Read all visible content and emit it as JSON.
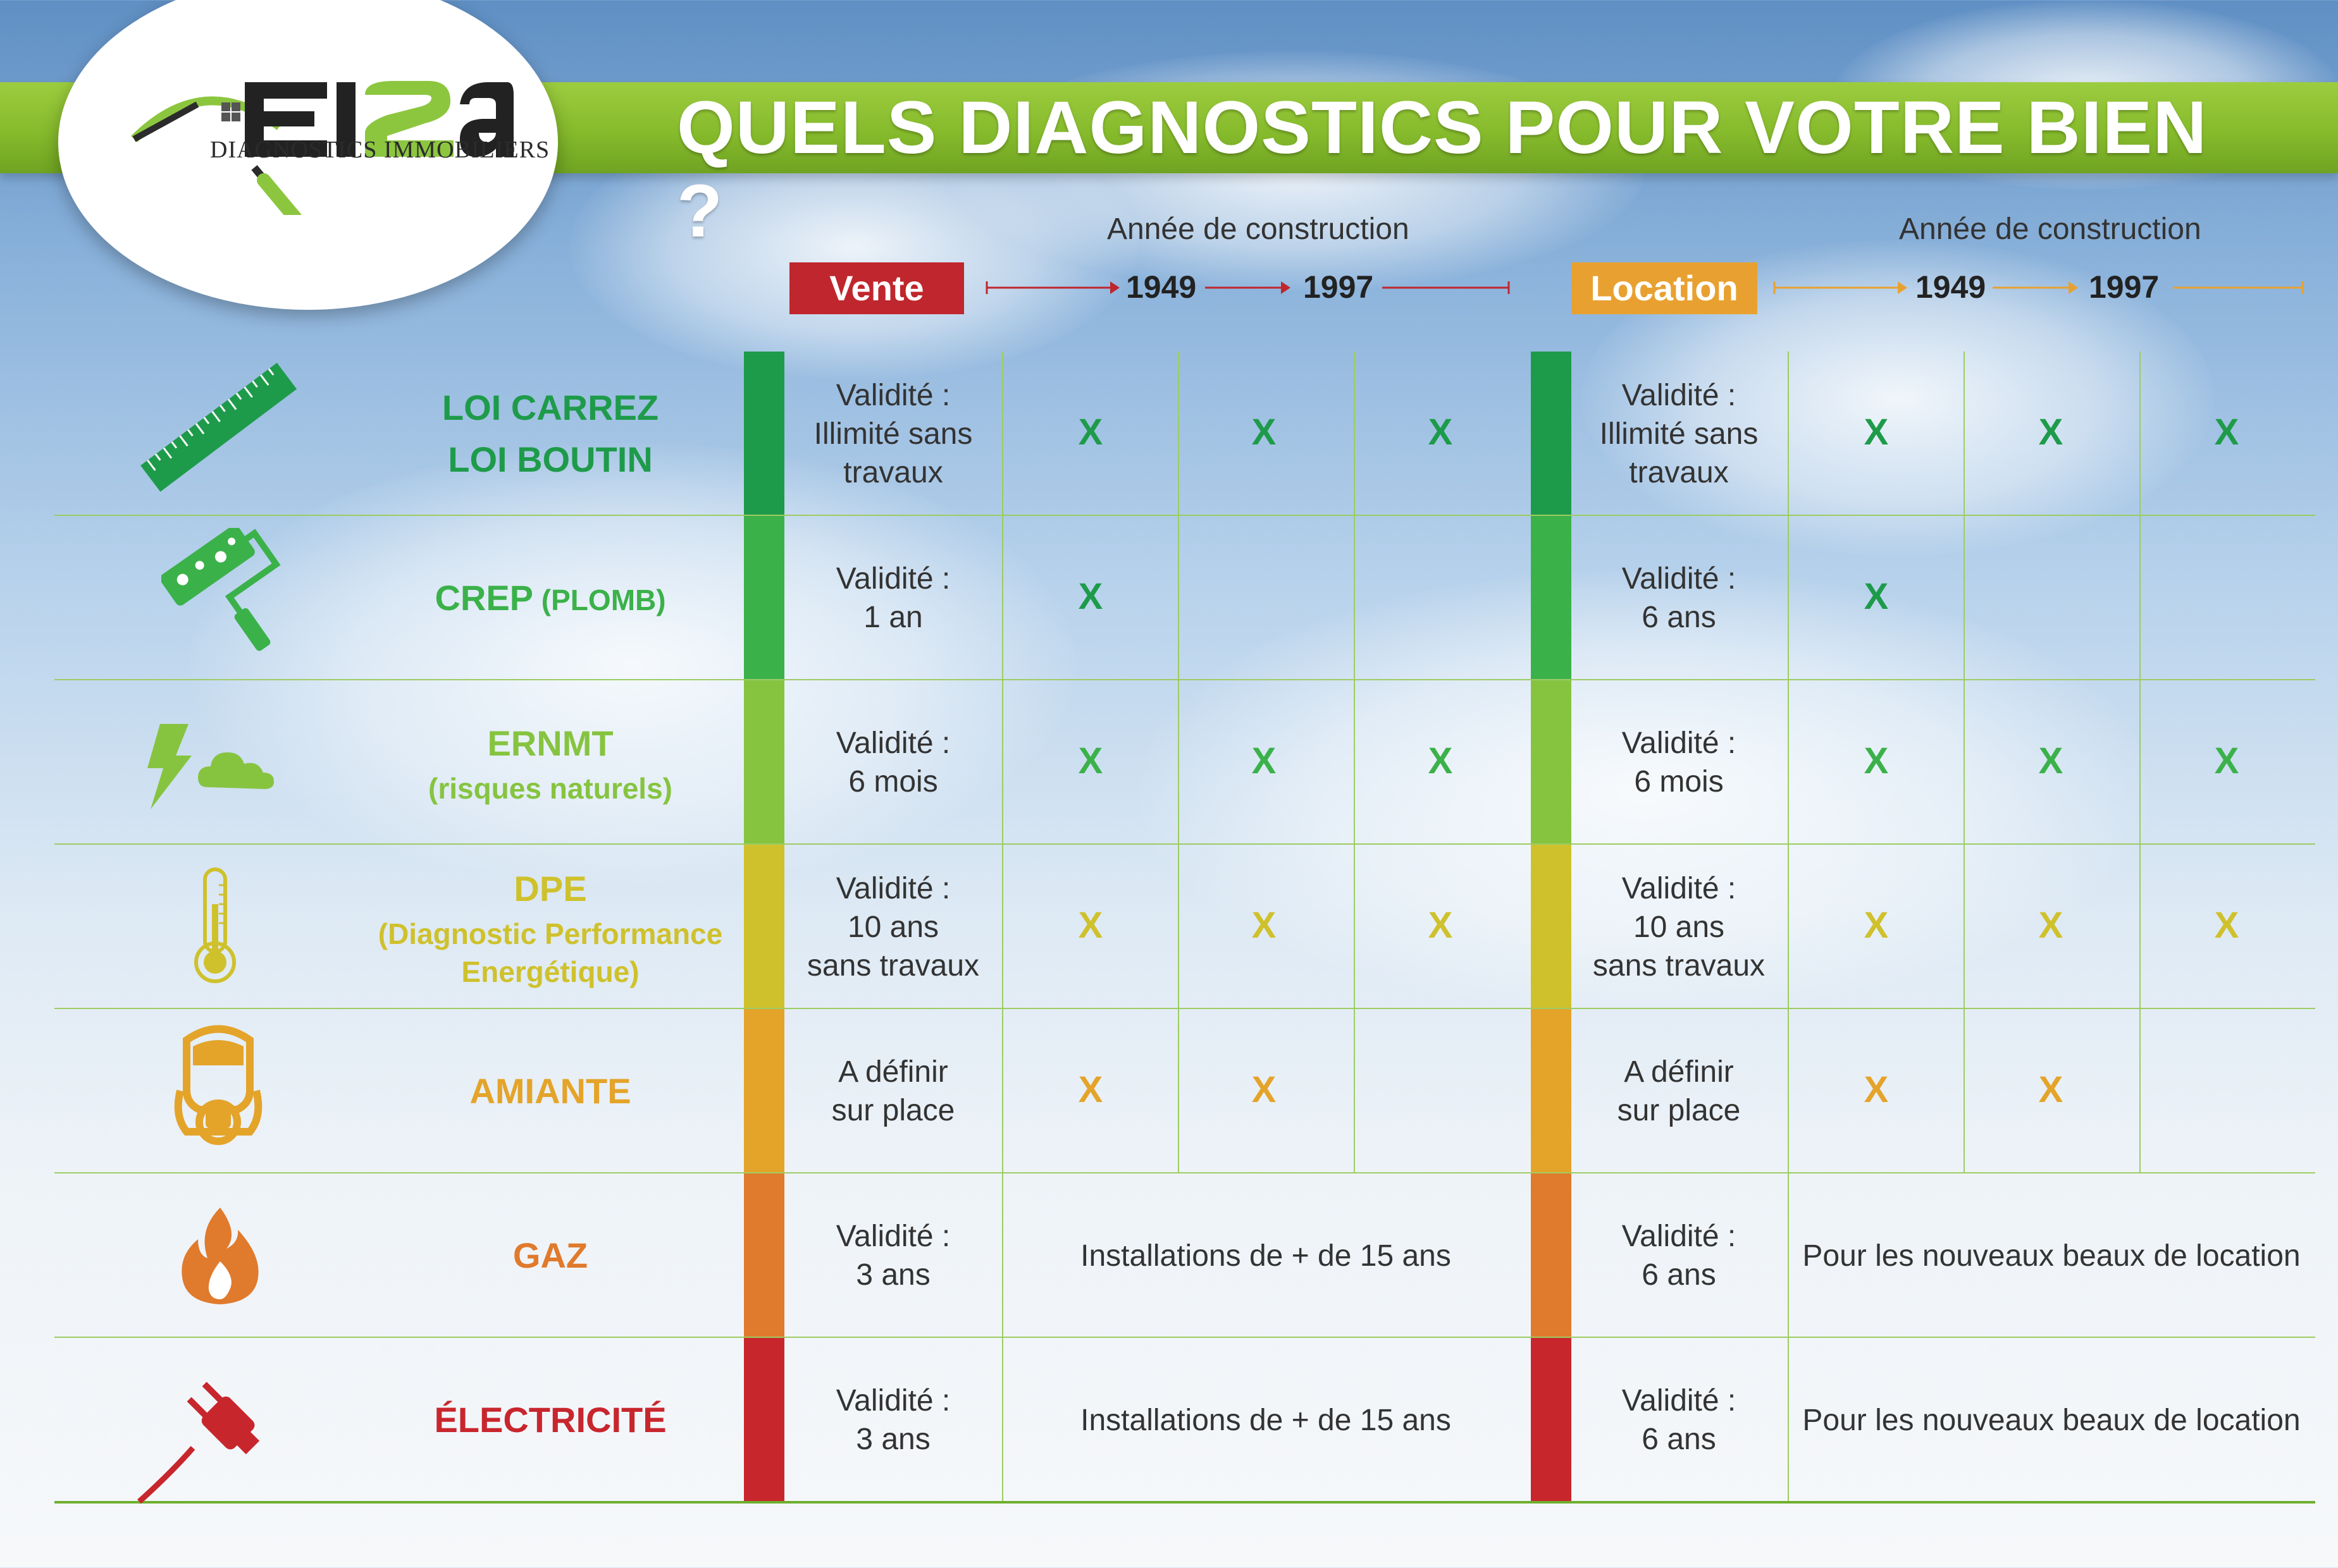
{
  "logo": {
    "brand": "EI2A",
    "subtitle": "DIAGNOSTICS IMMOBILIERS"
  },
  "title": "QUELS DIAGNOSTICS POUR VOTRE BIEN ?",
  "vente": {
    "tag": "Vente",
    "annee": "Année de construction",
    "year1": "1949",
    "year2": "1997",
    "color": "#c0262d"
  },
  "location": {
    "tag": "Location",
    "annee": "Année de construction",
    "year1": "1949",
    "year2": "1997",
    "color": "#e8a130"
  },
  "rows": [
    {
      "label1": "LOI CARREZ",
      "label2": "LOI BOUTIN",
      "icon": "ruler-icon",
      "color": "#1e9b4a",
      "vente_validite": [
        "Validité :",
        "Illimité sans",
        "travaux"
      ],
      "vente_x": [
        "X",
        "X",
        "X"
      ],
      "loc_validite": [
        "Validité :",
        "Illimité sans",
        "travaux"
      ],
      "loc_x": [
        "X",
        "X",
        "X"
      ]
    },
    {
      "label1": "CREP",
      "label_small": "(PLOMB)",
      "icon": "paint-roller-icon",
      "color": "#3bb14a",
      "vente_validite": [
        "Validité :",
        "1 an"
      ],
      "vente_x": [
        "X",
        "",
        ""
      ],
      "loc_validite": [
        "Validité :",
        "6 ans"
      ],
      "loc_x": [
        "X",
        "",
        ""
      ]
    },
    {
      "label1": "ERNMT",
      "label2": "(risques naturels)",
      "icon": "storm-icon",
      "color": "#86c440",
      "vente_validite": [
        "Validité :",
        "6 mois"
      ],
      "vente_x": [
        "X",
        "X",
        "X"
      ],
      "loc_validite": [
        "Validité :",
        "6 mois"
      ],
      "loc_x": [
        "X",
        "X",
        "X"
      ]
    },
    {
      "label1": "DPE",
      "label2": "(Diagnostic Performance",
      "label3": "Energétique)",
      "icon": "thermometer-icon",
      "color": "#cfc12c",
      "vente_validite": [
        "Validité :",
        "10 ans",
        "sans travaux"
      ],
      "vente_x": [
        "X",
        "X",
        "X"
      ],
      "loc_validite": [
        "Validité :",
        "10 ans",
        "sans travaux"
      ],
      "loc_x": [
        "X",
        "X",
        "X"
      ]
    },
    {
      "label1": "AMIANTE",
      "icon": "gas-mask-icon",
      "color": "#e4a42a",
      "vente_validite": [
        "A définir",
        "sur place"
      ],
      "vente_x": [
        "X",
        "X",
        ""
      ],
      "loc_validite": [
        "A définir",
        "sur place"
      ],
      "loc_x": [
        "X",
        "X",
        ""
      ]
    },
    {
      "label1": "GAZ",
      "icon": "flame-icon",
      "color": "#e07a2c",
      "vente_validite": [
        "Validité :",
        "3 ans"
      ],
      "vente_span": "Installations de + de 15 ans",
      "loc_validite": [
        "Validité :",
        "6 ans"
      ],
      "loc_span": "Pour les nouveaux beaux de location"
    },
    {
      "label1": "ÉLECTRICITÉ",
      "icon": "plug-icon",
      "color": "#c8262d",
      "vente_validite": [
        "Validité :",
        "3 ans"
      ],
      "vente_span": "Installations de + de 15 ans",
      "loc_validite": [
        "Validité :",
        "6 ans"
      ],
      "loc_span": "Pour les nouveaux beaux de location"
    }
  ]
}
